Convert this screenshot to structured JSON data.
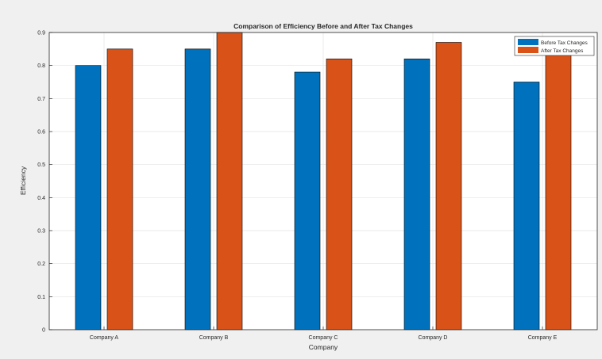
{
  "chart_data": {
    "type": "bar",
    "title": "Comparison of Efficiency Before and After Tax Changes",
    "xlabel": "Company",
    "ylabel": "Efficiency",
    "categories": [
      "Company A",
      "Company B",
      "Company C",
      "Company D",
      "Company E"
    ],
    "series": [
      {
        "name": "Before Tax Changes",
        "color": "#0072bd",
        "values": [
          0.8,
          0.85,
          0.78,
          0.82,
          0.75
        ]
      },
      {
        "name": "After Tax Changes",
        "color": "#d95319",
        "values": [
          0.85,
          0.9,
          0.82,
          0.87,
          0.84
        ]
      }
    ],
    "ylim": [
      0,
      0.9
    ],
    "yticks": [
      "0",
      "0.1",
      "0.2",
      "0.3",
      "0.4",
      "0.5",
      "0.6",
      "0.7",
      "0.8",
      "0.9"
    ],
    "grid": true,
    "legend_position": "top-right"
  }
}
